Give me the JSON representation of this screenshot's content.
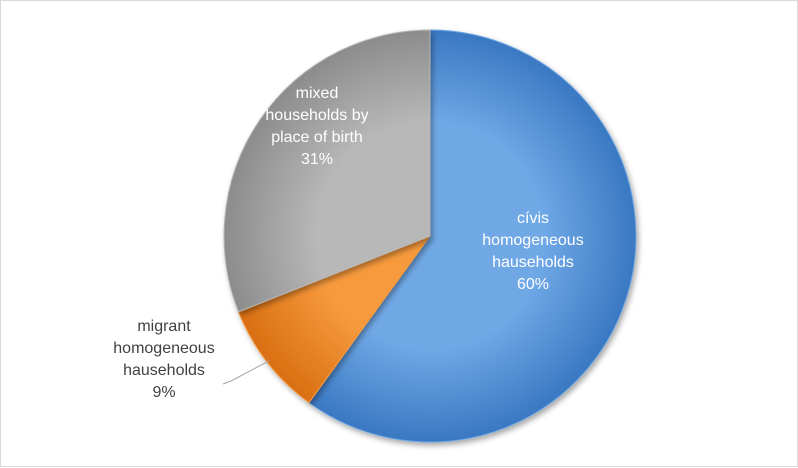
{
  "chart_data": {
    "type": "pie",
    "title": "",
    "slices": [
      {
        "label_lines": [
          "cívis",
          "homogeneous",
          "hauseholds",
          "60%"
        ],
        "category": "cívis homogeneous hauseholds",
        "value": 60,
        "percent_label": "60%",
        "color": "#6fa8e6",
        "color_dark": "#3a78c2",
        "label_color": "#ffffff",
        "label_placement": "inside"
      },
      {
        "label_lines": [
          "migrant",
          "homogeneous",
          "hauseholds",
          "9%"
        ],
        "category": "migrant homogeneous hauseholds",
        "value": 9,
        "percent_label": "9%",
        "color": "#f79a3e",
        "color_dark": "#d96f12",
        "label_color": "#404040",
        "label_placement": "outside-with-leader"
      },
      {
        "label_lines": [
          "mixed",
          "households by",
          "place of birth",
          "31%"
        ],
        "category": "mixed households by place of birth",
        "value": 31,
        "percent_label": "31%",
        "color": "#b8b8b8",
        "color_dark": "#8c8c8c",
        "label_color": "#ffffff",
        "label_placement": "inside"
      }
    ],
    "start_angle_deg": 0,
    "direction": "clockwise",
    "legend": "none",
    "leader_line_color": "#a6a6a6"
  }
}
